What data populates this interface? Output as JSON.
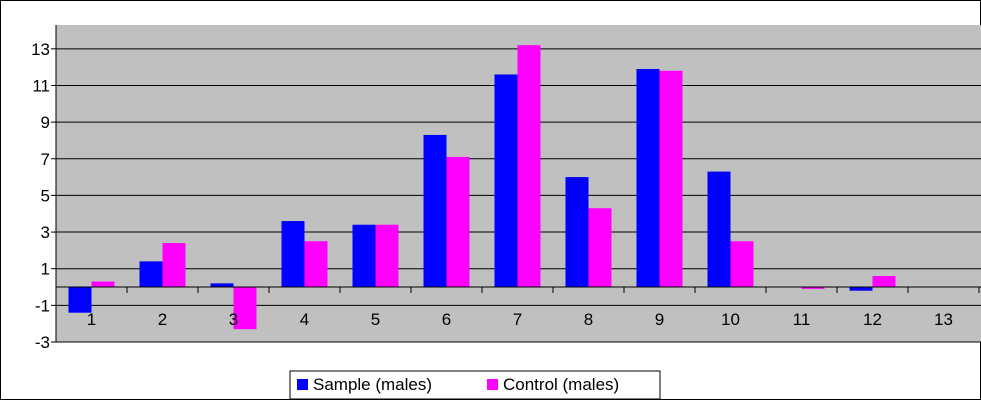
{
  "chart_data": {
    "type": "bar",
    "categories": [
      "1",
      "2",
      "3",
      "4",
      "5",
      "6",
      "7",
      "8",
      "9",
      "10",
      "11",
      "12",
      "13"
    ],
    "series": [
      {
        "name": "Sample (males)",
        "color": "#0000ff",
        "values": [
          -1.4,
          1.4,
          0.2,
          3.6,
          3.4,
          8.3,
          11.6,
          6.0,
          11.9,
          6.3,
          0.0,
          -0.2,
          0.0
        ]
      },
      {
        "name": "Control (males)",
        "color": "#ff00ff",
        "values": [
          0.3,
          2.4,
          -2.3,
          2.5,
          3.4,
          7.1,
          13.2,
          4.3,
          11.8,
          2.5,
          -0.1,
          0.6,
          0.0
        ]
      }
    ],
    "yticks": [
      "-3",
      "-1",
      "1",
      "3",
      "5",
      "7",
      "9",
      "11",
      "13"
    ],
    "ylim": [
      -3,
      14.3
    ],
    "grid": true,
    "plot_background": "#c0c0c0",
    "legend_position": "bottom-center"
  }
}
